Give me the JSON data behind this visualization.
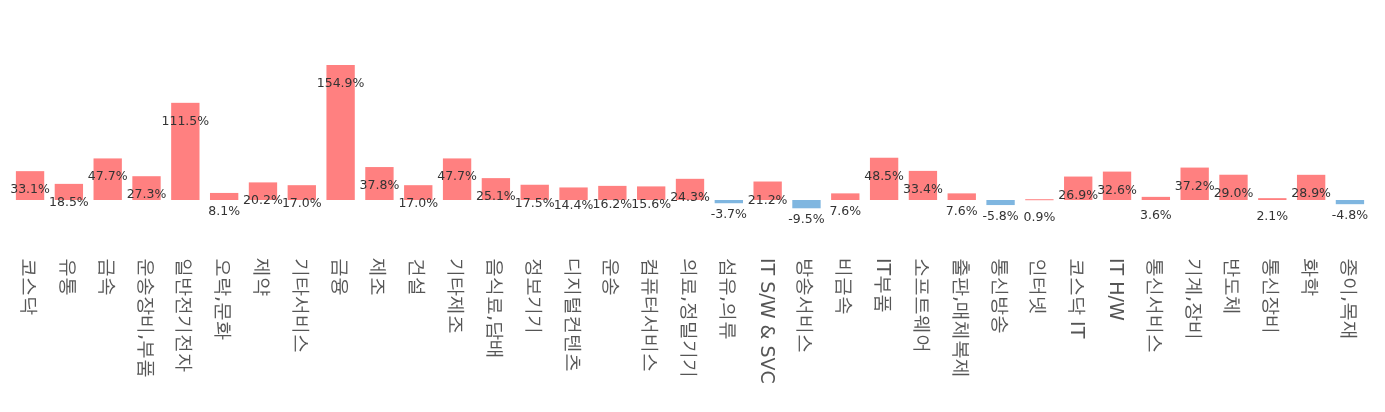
{
  "chart_data": {
    "type": "bar",
    "categories": [
      "코스닥",
      "유통",
      "금속",
      "운송장비,부품",
      "일반전기전자",
      "오락,문화",
      "제약",
      "기타서비스",
      "금융",
      "제조",
      "건설",
      "기타제조",
      "음식료,담배",
      "정보기기",
      "디지털컨텐츠",
      "운송",
      "컴퓨터서비스",
      "의료,정밀기기",
      "섬유,의류",
      "IT S/W & SVC",
      "방송서비스",
      "비금속",
      "IT부품",
      "소프트웨어",
      "출판,매체복제",
      "통신방송",
      "인터넷",
      "코스닥 IT",
      "IT H/W",
      "통신서비스",
      "기계,장비",
      "반도체",
      "통신장비",
      "화학",
      "종이,목재"
    ],
    "values": [
      33.1,
      18.5,
      47.7,
      27.3,
      111.5,
      8.1,
      20.2,
      17.0,
      154.9,
      37.8,
      17.0,
      47.7,
      25.1,
      17.5,
      14.4,
      16.2,
      15.6,
      24.3,
      -3.7,
      21.2,
      -9.5,
      7.6,
      48.5,
      33.4,
      7.6,
      -5.8,
      0.9,
      26.9,
      32.6,
      3.6,
      37.2,
      29.0,
      2.1,
      28.9,
      -4.8
    ],
    "value_labels": [
      "33.1%",
      "18.5%",
      "47.7%",
      "27.3%",
      "111.5%",
      "8.1%",
      "20.2%",
      "17.0%",
      "154.9%",
      "37.8%",
      "17.0%",
      "47.7%",
      "25.1%",
      "17.5%",
      "14.4%",
      "16.2%",
      "15.6%",
      "24.3%",
      "-3.7%",
      "21.2%",
      "-9.5%",
      "7.6%",
      "48.5%",
      "33.4%",
      "7.6%",
      "-5.8%",
      "0.9%",
      "26.9%",
      "32.6%",
      "3.6%",
      "37.2%",
      "29.0%",
      "2.1%",
      "28.9%",
      "-4.8%"
    ],
    "colors": [
      "#ff8080",
      "#ff8080",
      "#ff8080",
      "#ff8080",
      "#ff8080",
      "#ff8080",
      "#ff8080",
      "#ff8080",
      "#ff8080",
      "#ff8080",
      "#ff8080",
      "#ff8080",
      "#ff8080",
      "#ff8080",
      "#ff8080",
      "#ff8080",
      "#ff8080",
      "#ff8080",
      "#7fb6e0",
      "#ff8080",
      "#7fb6e0",
      "#ff8080",
      "#ff8080",
      "#ff8080",
      "#ff8080",
      "#7fb6e0",
      "#ff8080",
      "#ff8080",
      "#ff8080",
      "#ff8080",
      "#ff8080",
      "#ff8080",
      "#ff8080",
      "#ff8080",
      "#7fb6e0"
    ]
  }
}
